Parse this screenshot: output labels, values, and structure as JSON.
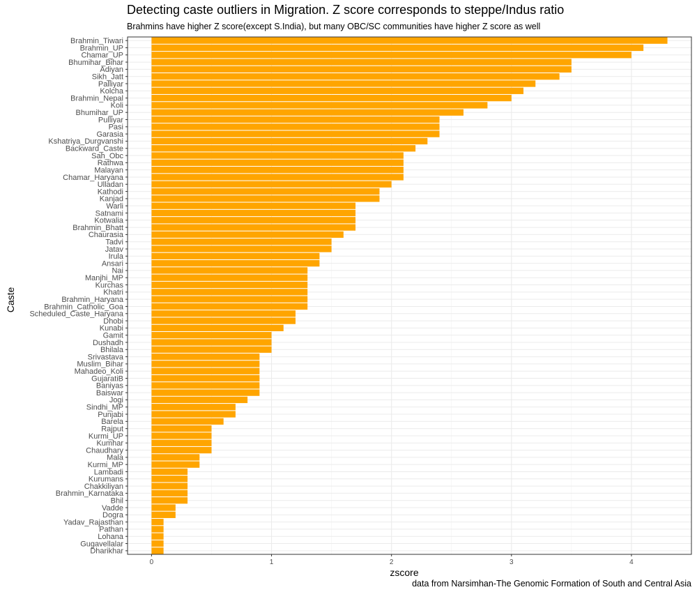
{
  "chart_data": {
    "type": "bar",
    "orientation": "horizontal",
    "title": "Detecting caste outliers in Migration.  Z score corresponds to steppe/Indus ratio",
    "subtitle": "Brahmins have higher Z score(except S.India), but many OBC/SC communities have higher Z score as well",
    "caption": "data from Narsimhan-The Genomic Formation of South and Central Asia",
    "xlabel": "zscore",
    "ylabel": "Caste",
    "xlim": [
      -0.2,
      4.5
    ],
    "xticks": [
      0,
      1,
      2,
      3,
      4
    ],
    "grid": true,
    "bar_color": "#FFA500",
    "categories": [
      "Brahmin_Tiwari",
      "Brahmin_UP",
      "Chamar_UP",
      "Bhumihar_Bihar",
      "Adiyan",
      "Sikh_Jatt",
      "Palliyar",
      "Kolcha",
      "Brahmin_Nepal",
      "Koli",
      "Bhumihar_UP",
      "Pulliyar",
      "Pasi",
      "Garasia",
      "Kshatriya_Durgvanshi",
      "Backward_Caste",
      "Sah_Obc",
      "Rathwa",
      "Malayan",
      "Chamar_Haryana",
      "Ulladan",
      "Kathodi",
      "Kanjad",
      "Warli",
      "Satnami",
      "Kotwalia",
      "Brahmin_Bhatt",
      "Chaurasia",
      "Tadvi",
      "Jatav",
      "Irula",
      "Ansari",
      "Nai",
      "Manjhi_MP",
      "Kurchas",
      "Khatri",
      "Brahmin_Haryana",
      "Brahmin_Catholic_Goa",
      "Scheduled_Caste_Haryana",
      "Dhobi",
      "Kunabi",
      "Gamit",
      "Dushadh",
      "Bhilala",
      "Srivastava",
      "Muslim_Bihar",
      "Mahadeo_Koli",
      "GujaratiB",
      "Baniyas",
      "Baiswar",
      "Jogi",
      "Sindhi_MP",
      "Punjabi",
      "Barela",
      "Rajput",
      "Kurmi_UP",
      "Kumhar",
      "Chaudhary",
      "Mala",
      "Kurmi_MP",
      "Lambadi",
      "Kurumans",
      "Chakkiliyan",
      "Brahmin_Karnataka",
      "Bhil",
      "Vadde",
      "Dogra",
      "Yadav_Rajasthan",
      "Pathan",
      "Lohana",
      "Gugavellalar",
      "Dharikhar"
    ],
    "values": [
      4.3,
      4.1,
      4.0,
      3.5,
      3.5,
      3.4,
      3.2,
      3.1,
      3.0,
      2.8,
      2.6,
      2.4,
      2.4,
      2.4,
      2.3,
      2.2,
      2.1,
      2.1,
      2.1,
      2.1,
      2.0,
      1.9,
      1.9,
      1.7,
      1.7,
      1.7,
      1.7,
      1.6,
      1.5,
      1.5,
      1.4,
      1.4,
      1.3,
      1.3,
      1.3,
      1.3,
      1.3,
      1.3,
      1.2,
      1.2,
      1.1,
      1.0,
      1.0,
      1.0,
      0.9,
      0.9,
      0.9,
      0.9,
      0.9,
      0.9,
      0.8,
      0.7,
      0.7,
      0.6,
      0.5,
      0.5,
      0.5,
      0.5,
      0.4,
      0.4,
      0.3,
      0.3,
      0.3,
      0.3,
      0.3,
      0.2,
      0.2,
      0.1,
      0.1,
      0.1,
      0.1,
      0.1
    ]
  }
}
